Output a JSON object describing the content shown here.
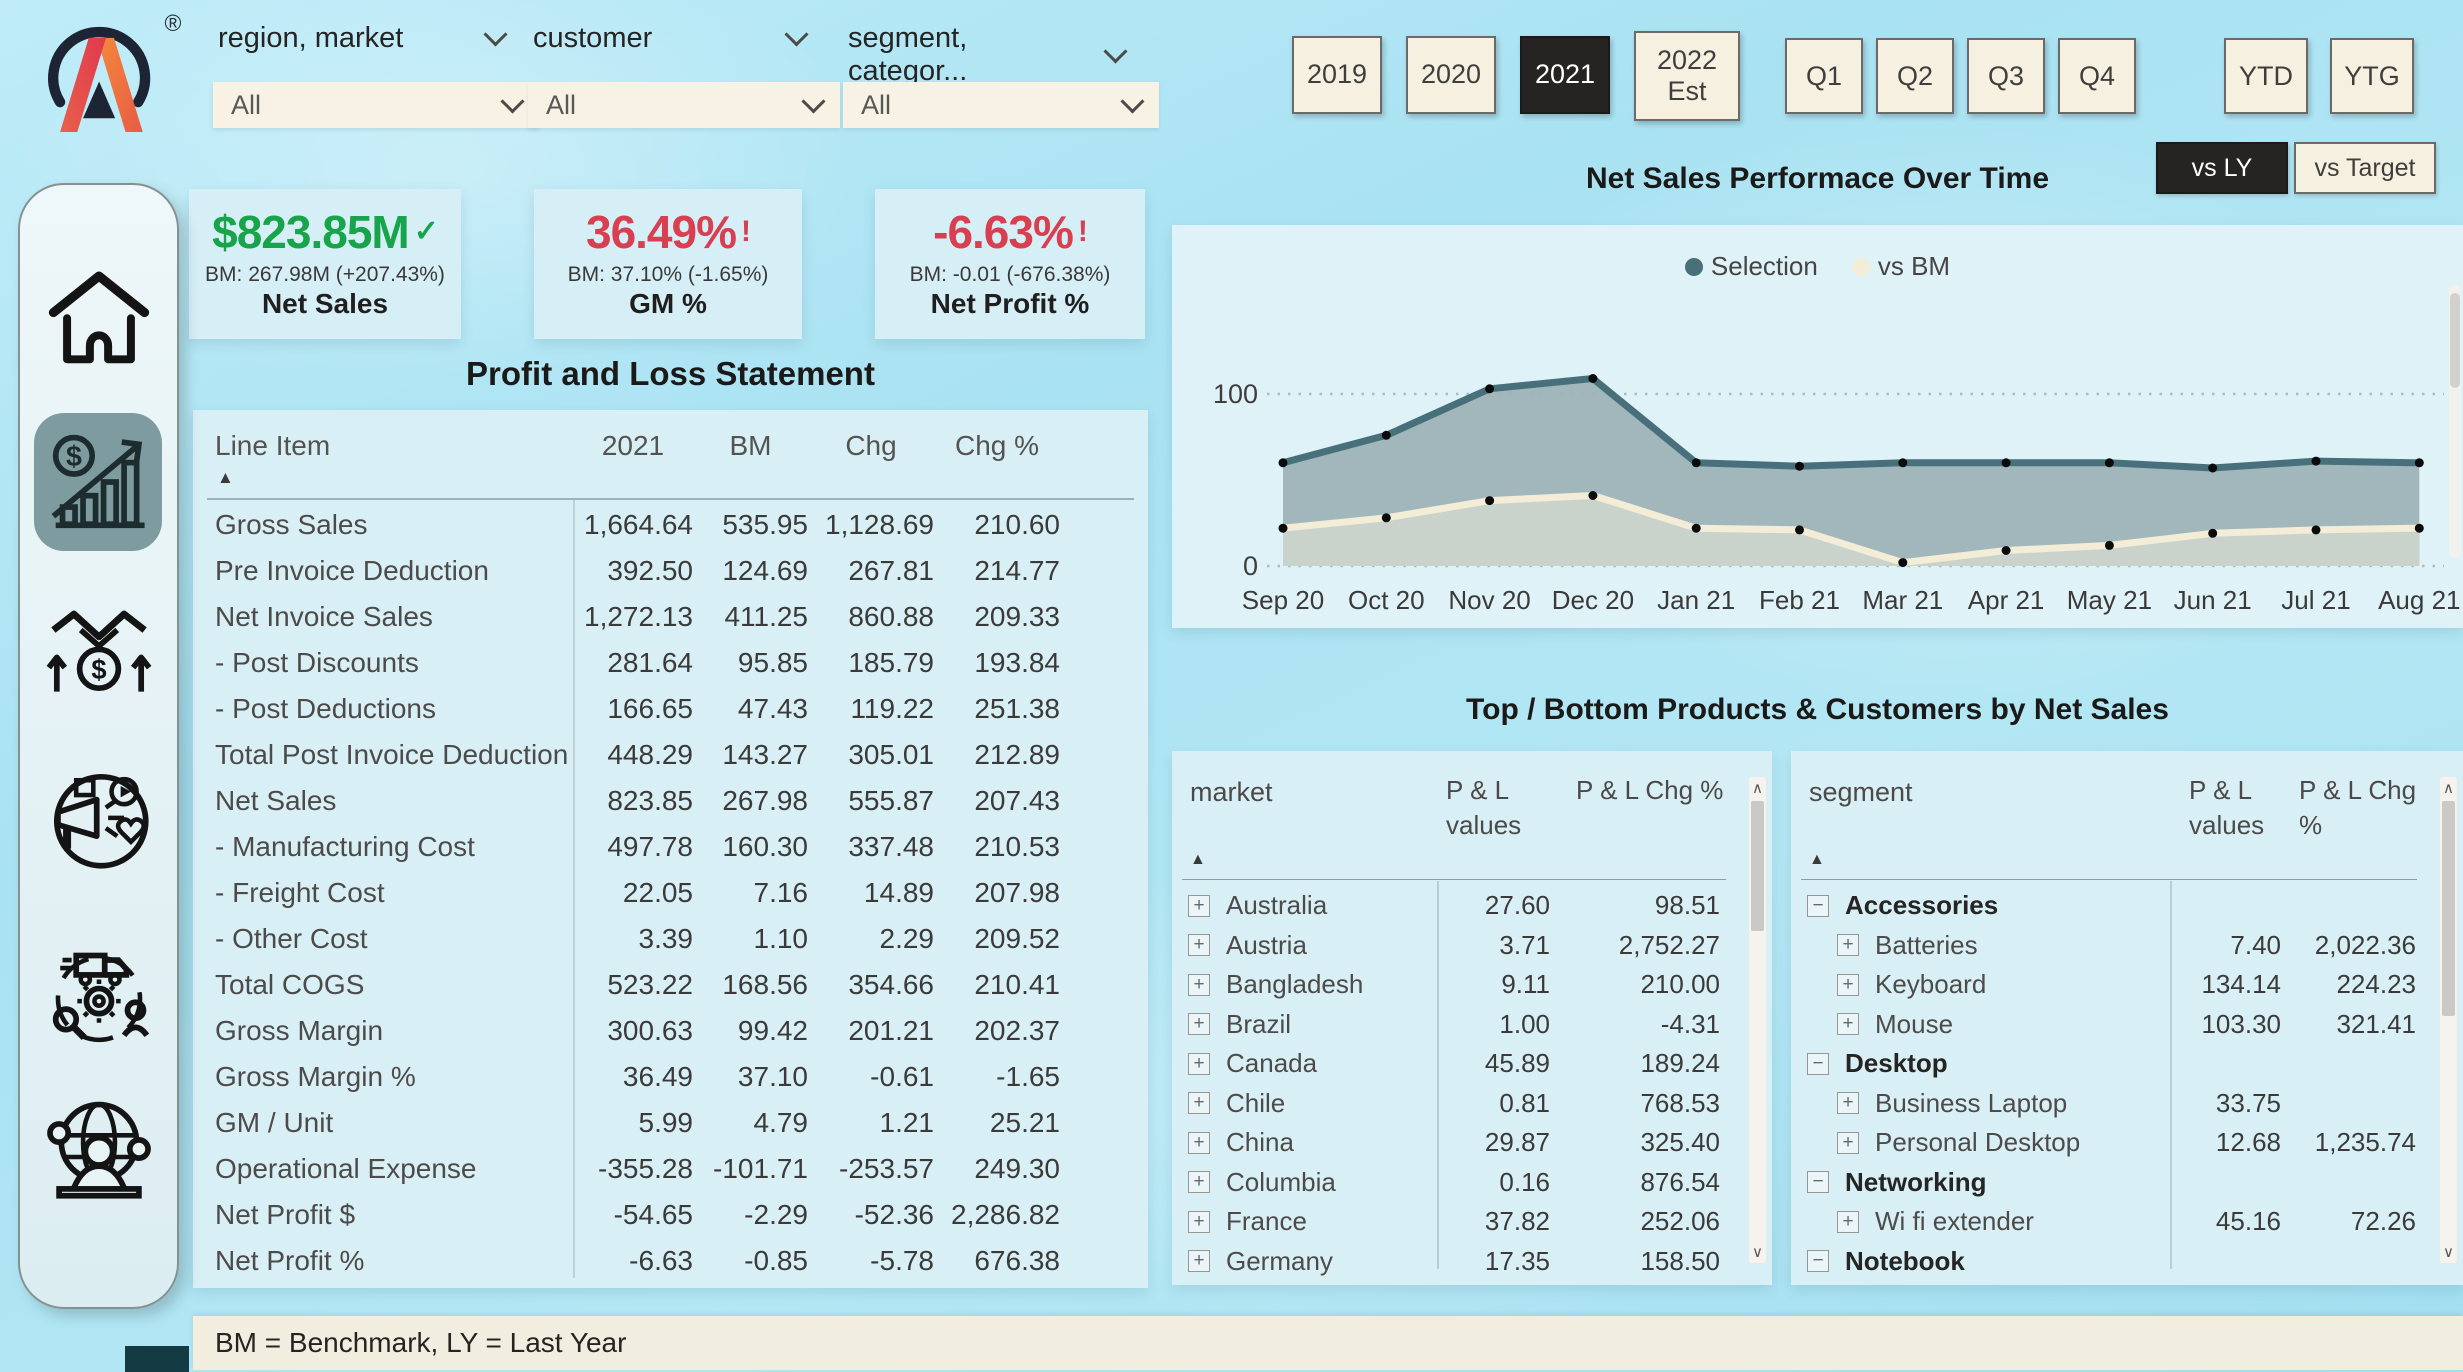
{
  "brand": {
    "registered_mark": "®"
  },
  "icons": {
    "sort_ascending": "▲",
    "expand": "+",
    "collapse": "−",
    "scroll_up": "∧",
    "scroll_down": "∨",
    "good_check": "✓",
    "alert": "!"
  },
  "filters": [
    {
      "label": "region, market",
      "value": "All"
    },
    {
      "label": "customer",
      "value": "All"
    },
    {
      "label": "segment, categor...",
      "value": "All"
    }
  ],
  "year_buttons": [
    {
      "label": "2019",
      "selected": false
    },
    {
      "label": "2020",
      "selected": false
    },
    {
      "label": "2021",
      "selected": true
    },
    {
      "label": "2022 Est",
      "selected": false
    }
  ],
  "quarter_buttons": [
    "Q1",
    "Q2",
    "Q3",
    "Q4"
  ],
  "period_buttons": [
    "YTD",
    "YTG"
  ],
  "compare_buttons": [
    {
      "label": "vs LY",
      "selected": true
    },
    {
      "label": "vs Target",
      "selected": false
    }
  ],
  "kpis": [
    {
      "value": "$823.85M",
      "indicator": "✓",
      "status": "good",
      "bm_line": "BM: 267.98M (+207.43%)",
      "title": "Net Sales"
    },
    {
      "value": "36.49%",
      "indicator": "!",
      "status": "bad",
      "bm_line": "BM: 37.10% (-1.65%)",
      "title": "GM %"
    },
    {
      "value": "-6.63%",
      "indicator": "!",
      "status": "bad",
      "bm_line": "BM: -0.01 (-676.38%)",
      "title": "Net Profit %"
    }
  ],
  "pnl": {
    "title": "Profit and Loss Statement",
    "columns": [
      "Line Item",
      "2021",
      "BM",
      "Chg",
      "Chg %"
    ],
    "rows": [
      [
        "Gross Sales",
        "1,664.64",
        "535.95",
        "1,128.69",
        "210.60"
      ],
      [
        "Pre Invoice Deduction",
        "392.50",
        "124.69",
        "267.81",
        "214.77"
      ],
      [
        "Net Invoice Sales",
        "1,272.13",
        "411.25",
        "860.88",
        "209.33"
      ],
      [
        "- Post Discounts",
        "281.64",
        "95.85",
        "185.79",
        "193.84"
      ],
      [
        "- Post Deductions",
        "166.65",
        "47.43",
        "119.22",
        "251.38"
      ],
      [
        "Total Post Invoice Deduction",
        "448.29",
        "143.27",
        "305.01",
        "212.89"
      ],
      [
        "Net Sales",
        "823.85",
        "267.98",
        "555.87",
        "207.43"
      ],
      [
        "- Manufacturing Cost",
        "497.78",
        "160.30",
        "337.48",
        "210.53"
      ],
      [
        "- Freight Cost",
        "22.05",
        "7.16",
        "14.89",
        "207.98"
      ],
      [
        "- Other Cost",
        "3.39",
        "1.10",
        "2.29",
        "209.52"
      ],
      [
        "Total COGS",
        "523.22",
        "168.56",
        "354.66",
        "210.41"
      ],
      [
        "Gross Margin",
        "300.63",
        "99.42",
        "201.21",
        "202.37"
      ],
      [
        "Gross Margin %",
        "36.49",
        "37.10",
        "-0.61",
        "-1.65"
      ],
      [
        "GM / Unit",
        "5.99",
        "4.79",
        "1.21",
        "25.21"
      ],
      [
        "Operational Expense",
        "-355.28",
        "-101.71",
        "-253.57",
        "249.30"
      ],
      [
        "Net Profit $",
        "-54.65",
        "-2.29",
        "-52.36",
        "2,286.82"
      ],
      [
        "Net Profit %",
        "-6.63",
        "-0.85",
        "-5.78",
        "676.38"
      ]
    ]
  },
  "chart_data": {
    "type": "area",
    "title": "Net Sales Performace Over Time",
    "x": [
      "Sep 20",
      "Oct 20",
      "Nov 20",
      "Dec 20",
      "Jan 21",
      "Feb 21",
      "Mar 21",
      "Apr 21",
      "May 21",
      "Jun 21",
      "Jul 21",
      "Aug 21"
    ],
    "series": [
      {
        "name": "Selection",
        "line_color": "#47707a",
        "fill_color": "#9db3b8",
        "values": [
          60,
          76,
          103,
          109,
          60,
          58,
          60,
          60,
          60,
          57,
          61,
          60
        ]
      },
      {
        "name": "vs BM",
        "line_color": "#f3ecd6",
        "fill_color": "#c9d3cb",
        "values": [
          22,
          28,
          38,
          41,
          22,
          21,
          2,
          9,
          12,
          19,
          21,
          22
        ]
      }
    ],
    "ylim": [
      0,
      115
    ],
    "yticks": [
      0,
      100
    ],
    "grid": "dotted horizontal at 0 and 100",
    "legend_position": "top-center",
    "marker_color": "#0b0b0b"
  },
  "top_bottom": {
    "title": "Top / Bottom Products & Customers by Net Sales",
    "market_table": {
      "columns": [
        "market",
        "P & L values",
        "P & L Chg %"
      ],
      "rows": [
        {
          "label": "Australia",
          "values": "27.60",
          "chg": "98.51"
        },
        {
          "label": "Austria",
          "values": "3.71",
          "chg": "2,752.27"
        },
        {
          "label": "Bangladesh",
          "values": "9.11",
          "chg": "210.00"
        },
        {
          "label": "Brazil",
          "values": "1.00",
          "chg": "-4.31"
        },
        {
          "label": "Canada",
          "values": "45.89",
          "chg": "189.24"
        },
        {
          "label": "Chile",
          "values": "0.81",
          "chg": "768.53"
        },
        {
          "label": "China",
          "values": "29.87",
          "chg": "325.40"
        },
        {
          "label": "Columbia",
          "values": "0.16",
          "chg": "876.54"
        },
        {
          "label": "France",
          "values": "37.82",
          "chg": "252.06"
        },
        {
          "label": "Germany",
          "values": "17.35",
          "chg": "158.50"
        }
      ]
    },
    "segment_table": {
      "columns": [
        "segment",
        "P & L values",
        "P & L Chg %"
      ],
      "rows": [
        {
          "label": "Accessories",
          "group": true,
          "values": "",
          "chg": ""
        },
        {
          "label": "Batteries",
          "group": false,
          "values": "7.40",
          "chg": "2,022.36"
        },
        {
          "label": "Keyboard",
          "group": false,
          "values": "134.14",
          "chg": "224.23"
        },
        {
          "label": "Mouse",
          "group": false,
          "values": "103.30",
          "chg": "321.41"
        },
        {
          "label": "Desktop",
          "group": true,
          "values": "",
          "chg": ""
        },
        {
          "label": "Business Laptop",
          "group": false,
          "values": "33.75",
          "chg": ""
        },
        {
          "label": "Personal Desktop",
          "group": false,
          "values": "12.68",
          "chg": "1,235.74"
        },
        {
          "label": "Networking",
          "group": true,
          "values": "",
          "chg": ""
        },
        {
          "label": "Wi fi extender",
          "group": false,
          "values": "45.16",
          "chg": "72.26"
        },
        {
          "label": "Notebook",
          "group": true,
          "values": "",
          "chg": ""
        }
      ]
    }
  },
  "footer": {
    "note": "BM = Benchmark,  LY = Last Year"
  },
  "sidebar": {
    "items": [
      {
        "id": "home",
        "selected": false
      },
      {
        "id": "sales-performance",
        "selected": true
      },
      {
        "id": "partnership-deals",
        "selected": false
      },
      {
        "id": "marketing-social",
        "selected": false
      },
      {
        "id": "operations-supply-chain",
        "selected": false
      },
      {
        "id": "global-customer",
        "selected": false
      }
    ]
  }
}
